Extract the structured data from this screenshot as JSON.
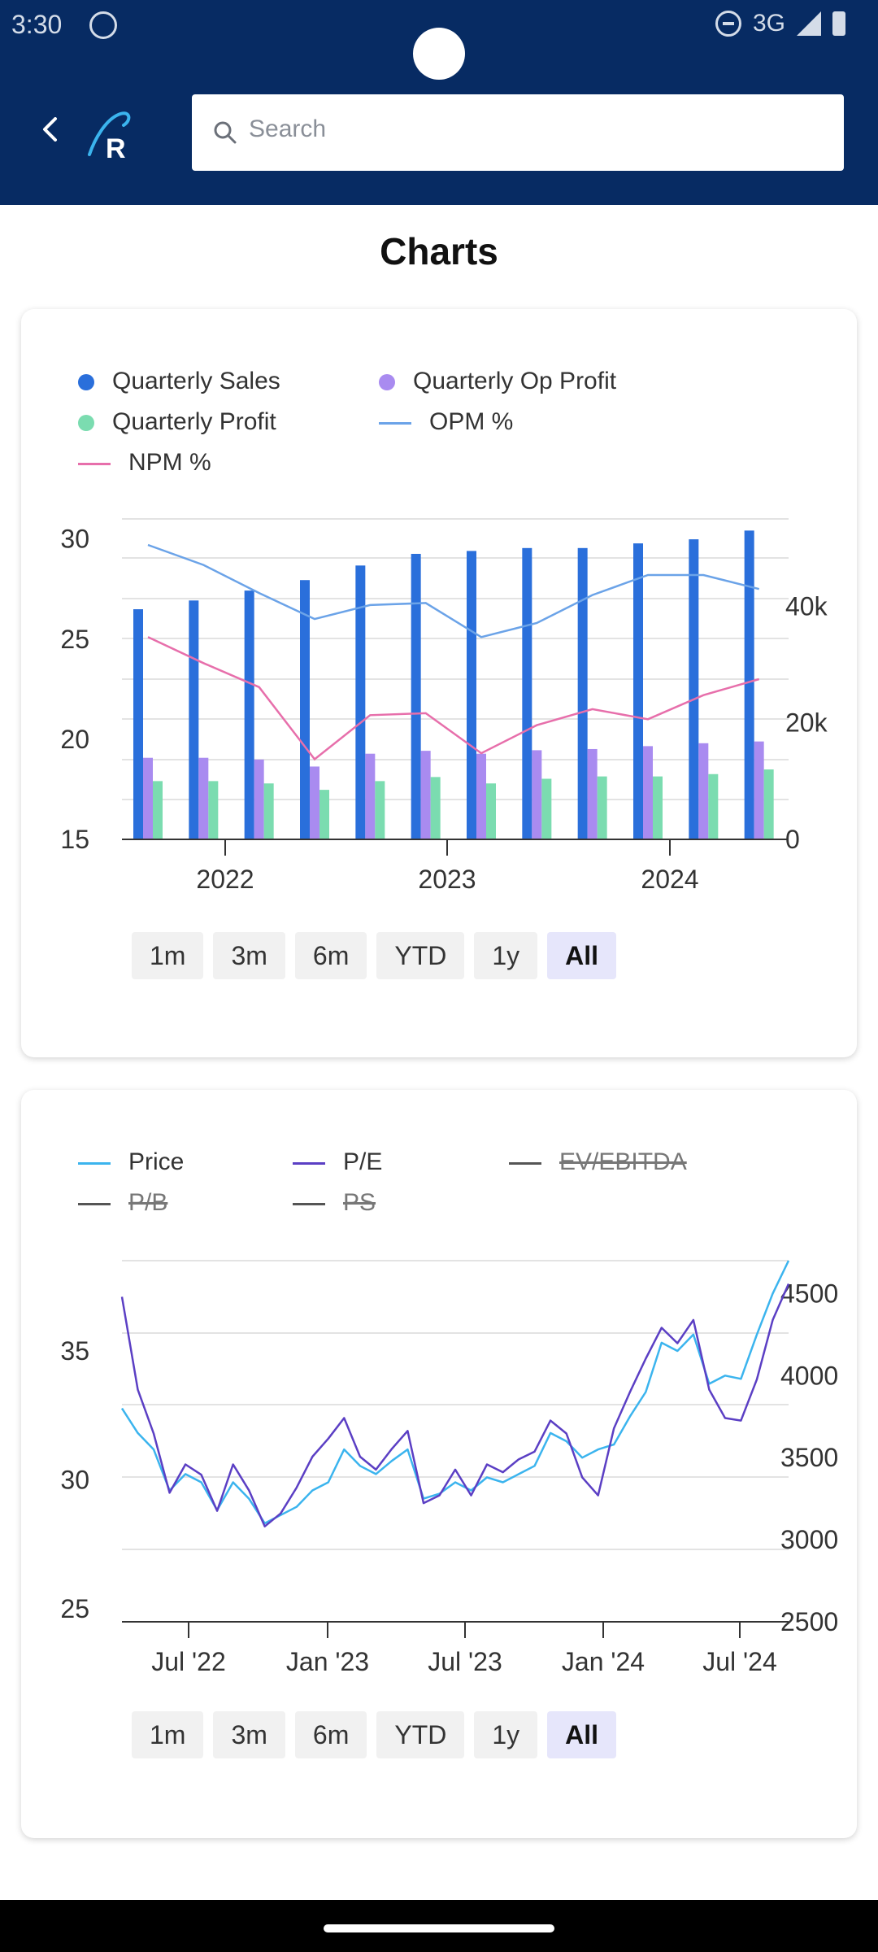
{
  "status_bar": {
    "time": "3:30",
    "network": "3G"
  },
  "header": {
    "search_placeholder": "Search"
  },
  "page_title": "Charts",
  "range_buttons": [
    "1m",
    "3m",
    "6m",
    "YTD",
    "1y",
    "All"
  ],
  "colors": {
    "header_bg": "#072b63",
    "sales": "#2a6fdb",
    "op_profit": "#a98bf0",
    "profit": "#7bdcb0",
    "opm": "#6ba3e8",
    "npm": "#e76fab",
    "price": "#3bb4ee",
    "pe": "#5b3fc4",
    "disabled": "#555555"
  },
  "chart_data": [
    {
      "type": "bar",
      "legend": [
        {
          "name": "Quarterly Sales",
          "marker": "dot",
          "color": "#2a6fdb"
        },
        {
          "name": "Quarterly Op Profit",
          "marker": "dot",
          "color": "#a98bf0"
        },
        {
          "name": "Quarterly Profit",
          "marker": "dot",
          "color": "#7bdcb0"
        },
        {
          "name": "OPM %",
          "marker": "line",
          "color": "#6ba3e8"
        },
        {
          "name": "NPM %",
          "marker": "line",
          "color": "#e76fab"
        }
      ],
      "x_ticks": [
        "2022",
        "2023",
        "2024"
      ],
      "left_axis": {
        "ticks": [
          15,
          20,
          25,
          30
        ],
        "range": [
          15,
          31
        ]
      },
      "right_axis": {
        "ticks": [
          "0",
          "20k",
          "40k"
        ],
        "range": [
          0,
          55000
        ]
      },
      "grid": true,
      "series": [
        {
          "name": "Quarterly Sales",
          "axis": "right",
          "values": [
            39500,
            41000,
            42700,
            44500,
            47000,
            49000,
            49500,
            50000,
            50000,
            50800,
            51500,
            53000
          ]
        },
        {
          "name": "Quarterly Op Profit",
          "axis": "right",
          "values": [
            14000,
            14000,
            13700,
            12500,
            14700,
            15200,
            14700,
            15300,
            15500,
            16000,
            16500,
            16800
          ]
        },
        {
          "name": "Quarterly Profit",
          "axis": "right",
          "values": [
            10000,
            10000,
            9600,
            8500,
            10000,
            10700,
            9600,
            10400,
            10800,
            10800,
            11200,
            12000
          ]
        },
        {
          "name": "OPM %",
          "axis": "left",
          "values": [
            29.7,
            28.7,
            27.3,
            26.0,
            26.7,
            26.8,
            25.1,
            25.8,
            27.2,
            28.2,
            28.2,
            27.5
          ]
        },
        {
          "name": "NPM %",
          "axis": "left",
          "values": [
            25.1,
            23.8,
            22.6,
            19.0,
            21.2,
            21.3,
            19.3,
            20.7,
            21.5,
            21.0,
            22.2,
            23.0
          ]
        }
      ]
    },
    {
      "type": "line",
      "legend": [
        {
          "name": "Price",
          "color": "#3bb4ee",
          "enabled": true
        },
        {
          "name": "P/E",
          "color": "#5b3fc4",
          "enabled": true
        },
        {
          "name": "EV/EBITDA",
          "color": "#555555",
          "enabled": false
        },
        {
          "name": "P/B",
          "color": "#555555",
          "enabled": false
        },
        {
          "name": "PS",
          "color": "#555555",
          "enabled": false
        }
      ],
      "x_ticks": [
        "Jul '22",
        "Jan '23",
        "Jul '23",
        "Jan '24",
        "Jul '24"
      ],
      "left_axis": {
        "ticks": [
          25,
          30,
          35
        ],
        "range": [
          24.5,
          38.5
        ]
      },
      "right_axis": {
        "ticks": [
          2500,
          3000,
          3500,
          4000,
          4500
        ],
        "range": [
          2500,
          4700
        ]
      },
      "grid": true,
      "series": [
        {
          "name": "Price",
          "axis": "right",
          "values": [
            3800,
            3650,
            3550,
            3300,
            3400,
            3350,
            3180,
            3350,
            3250,
            3100,
            3150,
            3200,
            3300,
            3350,
            3550,
            3450,
            3400,
            3480,
            3550,
            3250,
            3280,
            3350,
            3300,
            3380,
            3350,
            3400,
            3450,
            3650,
            3600,
            3500,
            3550,
            3580,
            3750,
            3900,
            4200,
            4150,
            4250,
            3950,
            4000,
            3980,
            4250,
            4500,
            4700
          ]
        },
        {
          "name": "P/E",
          "axis": "left",
          "values": [
            37.1,
            33.5,
            31.8,
            29.5,
            30.6,
            30.2,
            28.8,
            30.6,
            29.6,
            28.2,
            28.7,
            29.7,
            30.9,
            31.6,
            32.4,
            30.9,
            30.4,
            31.2,
            31.9,
            29.1,
            29.4,
            30.4,
            29.4,
            30.6,
            30.3,
            30.8,
            31.1,
            32.3,
            31.8,
            30.1,
            29.4,
            32.0,
            33.4,
            34.7,
            35.9,
            35.3,
            36.2,
            33.5,
            32.4,
            32.3,
            33.9,
            36.2,
            37.6
          ]
        }
      ]
    }
  ]
}
